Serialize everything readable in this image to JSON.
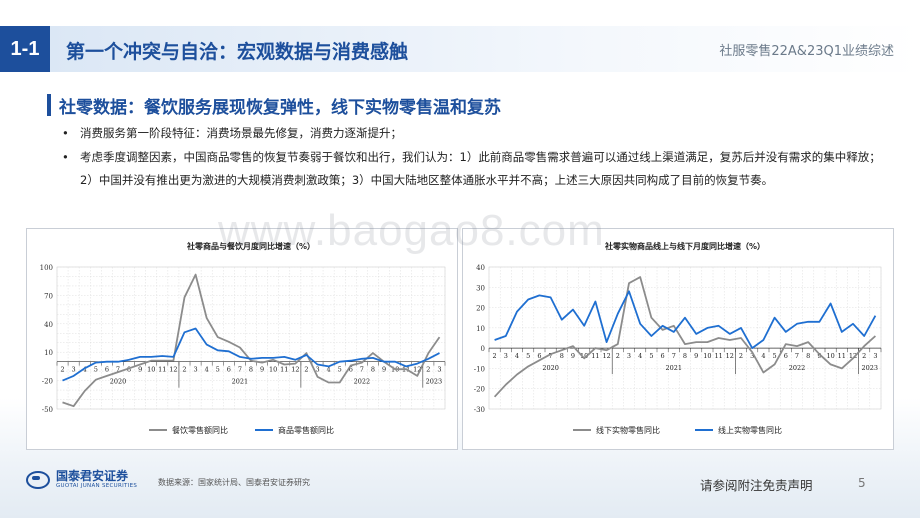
{
  "header": {
    "section_number": "1-1",
    "title": "第一个冲突与自洽：宏观数据与消费感触",
    "report_name": "社服零售22A&23Q1业绩综述"
  },
  "subtitle": "社零数据：餐饮服务展现恢复弹性，线下实物零售温和复苏",
  "bullets": [
    "消费服务第一阶段特征：消费场景最先修复，消费力逐渐提升；",
    "考虑季度调整因素，中国商品零售的恢复节奏弱于餐饮和出行，我们认为：1）此前商品零售需求普遍可以通过线上渠道满足，复苏后并没有需求的集中释放；2）中国并没有推出更为激进的大规模消费刺激政策；3）中国大陆地区整体通胀水平并不高；上述三大原因共同构成了目前的恢复节奏。"
  ],
  "bullet_mark": "•",
  "watermark": "www.baogao8.com",
  "footer": {
    "logo_cn": "国泰君安证券",
    "logo_en": "GUOTAI JUNAN SECURITIES",
    "source": "数据来源：国家统计局、国泰君安证券研究",
    "disclaimer": "请参阅附注免责声明",
    "page_number": "5"
  },
  "colors": {
    "brand_blue": "#1d4f9c",
    "series_gray": "#8c8c8c",
    "series_blue": "#1f6fd1"
  },
  "chart_data": [
    {
      "type": "line",
      "title": "社零商品与餐饮月度同比增速（%）",
      "ylim": [
        -50,
        100
      ],
      "yticks": [
        -50,
        -20,
        10,
        40,
        70,
        100
      ],
      "grid": true,
      "legend_position": "bottom",
      "month_labels": [
        "2",
        "3",
        "4",
        "5",
        "6",
        "7",
        "8",
        "9",
        "10",
        "11",
        "12",
        "2",
        "3",
        "4",
        "5",
        "6",
        "7",
        "8",
        "9",
        "10",
        "11",
        "12",
        "2",
        "3",
        "4",
        "5",
        "6",
        "7",
        "8",
        "9",
        "10",
        "11",
        "12",
        "2",
        "3"
      ],
      "year_labels": [
        "2020",
        "2021",
        "2022",
        "2023"
      ],
      "series": [
        {
          "name": "餐饮零售额同比",
          "values": [
            -43,
            -47,
            -31,
            -19,
            -15,
            -11,
            -7,
            -3,
            1,
            1,
            1,
            68,
            92,
            46,
            26,
            21,
            15,
            1,
            -1,
            2,
            -3,
            -2,
            9,
            -16,
            -22,
            -22,
            -4,
            -1,
            9,
            0,
            -8,
            -8,
            -15,
            9,
            26
          ]
        },
        {
          "name": "商品零售额同比",
          "values": [
            -20,
            -15,
            -7,
            -1,
            0,
            0,
            2,
            5,
            5,
            6,
            5,
            31,
            35,
            18,
            12,
            11,
            5,
            3,
            4,
            4,
            5,
            2,
            7,
            -3,
            -5,
            0,
            1,
            3,
            4,
            0,
            0,
            -5,
            -2,
            3,
            9
          ]
        }
      ]
    },
    {
      "type": "line",
      "title": "社零实物商品线上与线下月度同比增速（%）",
      "ylim": [
        -30,
        40
      ],
      "yticks": [
        -30,
        -20,
        -10,
        0,
        10,
        20,
        30,
        40
      ],
      "grid": true,
      "legend_position": "bottom",
      "month_labels": [
        "2",
        "3",
        "4",
        "5",
        "6",
        "7",
        "8",
        "9",
        "10",
        "11",
        "12",
        "2",
        "3",
        "4",
        "5",
        "6",
        "7",
        "8",
        "9",
        "10",
        "11",
        "12",
        "2",
        "3",
        "4",
        "5",
        "6",
        "7",
        "8",
        "9",
        "10",
        "11",
        "12",
        "2",
        "3"
      ],
      "year_labels": [
        "2020",
        "2021",
        "2022",
        "2023"
      ],
      "series": [
        {
          "name": "线下实物零售同比",
          "values": [
            -24,
            -18,
            -13,
            -9,
            -6,
            -3,
            -1,
            1,
            -5,
            0,
            -1,
            2,
            32,
            35,
            15,
            9,
            11,
            2,
            3,
            3,
            5,
            4,
            5,
            -2,
            -12,
            -8,
            2,
            1,
            3,
            -3,
            -8,
            -10,
            -5,
            1,
            6
          ]
        },
        {
          "name": "线上实物零售同比",
          "values": [
            4,
            6,
            18,
            24,
            26,
            25,
            14,
            19,
            11,
            23,
            3,
            17,
            28,
            12,
            6,
            11,
            8,
            15,
            7,
            10,
            11,
            7,
            10,
            0,
            4,
            15,
            8,
            12,
            13,
            13,
            22,
            8,
            12,
            6,
            16
          ]
        }
      ]
    }
  ]
}
